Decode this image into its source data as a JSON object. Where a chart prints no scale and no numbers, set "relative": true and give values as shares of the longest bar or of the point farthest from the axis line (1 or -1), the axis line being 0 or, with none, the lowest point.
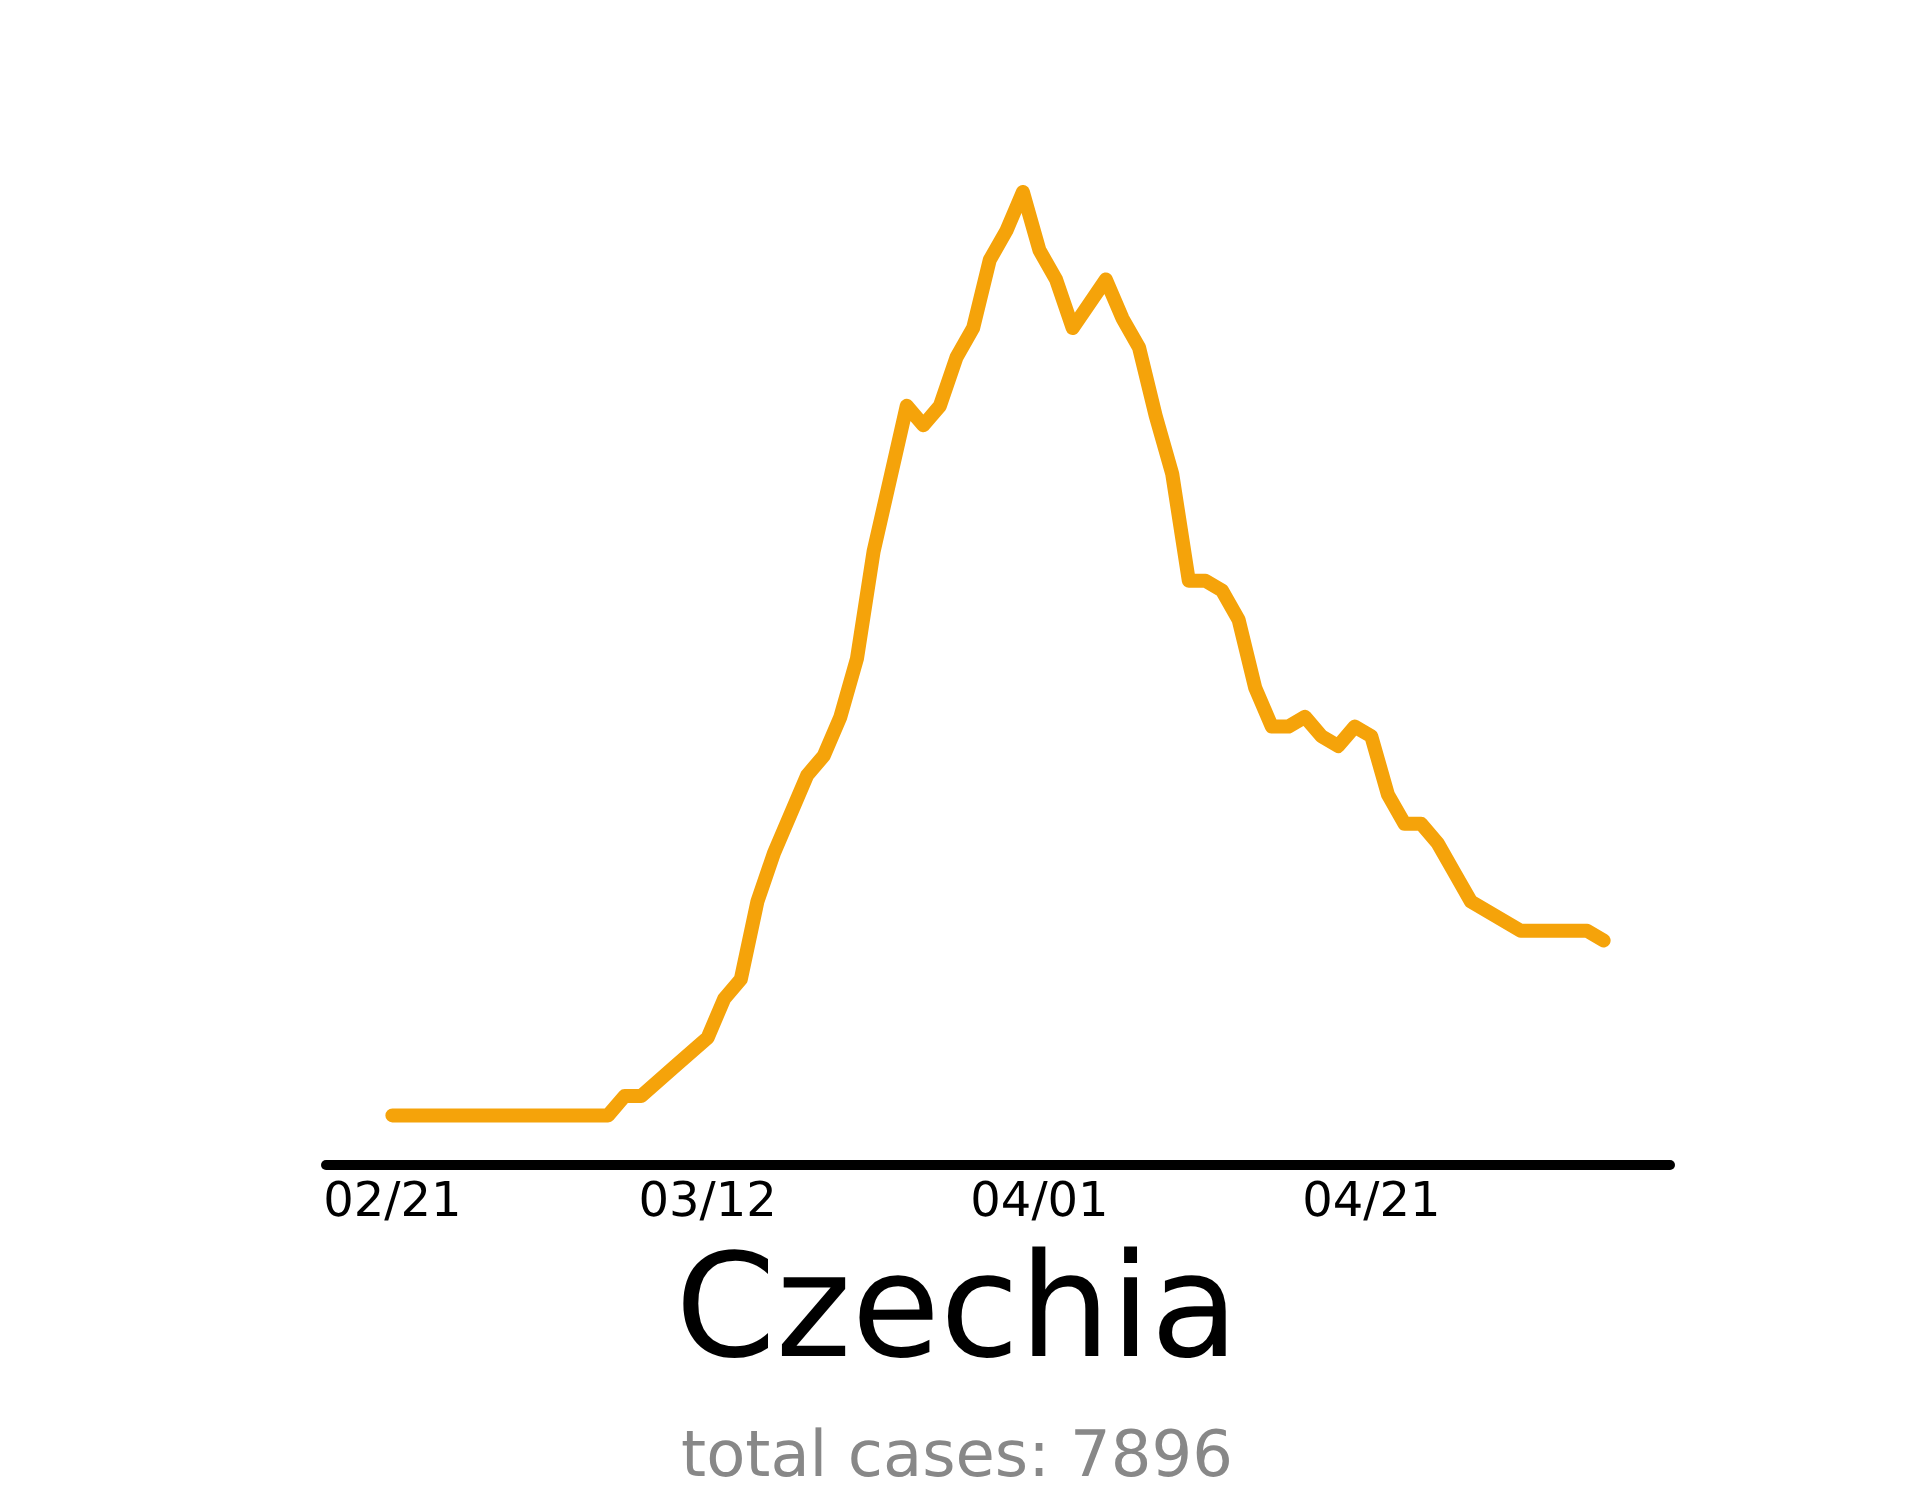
{
  "chart_data": {
    "type": "line",
    "title": "Czechia",
    "annotations": [
      "total cases: 7896"
    ],
    "relative": true,
    "tick_labels": "x",
    "grid": false,
    "marker": "none",
    "line_style": "solid",
    "xlim": [
      "--02-17",
      "--05-09"
    ],
    "xticks": [
      {
        "value": "--02-21",
        "label": "02/21"
      },
      {
        "value": "--03-12",
        "label": "03/12"
      },
      {
        "value": "--04-01",
        "label": "04/01"
      },
      {
        "value": "--04-21",
        "label": "04/21"
      }
    ],
    "x": [
      "--02-21",
      "--02-28",
      "--03-03",
      "--03-06",
      "--03-07",
      "--03-08",
      "--03-10",
      "--03-12",
      "--03-13",
      "--03-14",
      "--03-15",
      "--03-16",
      "--03-18",
      "--03-19",
      "--03-20",
      "--03-21",
      "--03-22",
      "--03-24",
      "--03-25",
      "--03-26",
      "--03-27",
      "--03-28",
      "--03-29",
      "--03-30",
      "--03-31",
      "--04-01",
      "--04-02",
      "--04-03",
      "--04-05",
      "--04-06",
      "--04-07",
      "--04-08",
      "--04-09",
      "--04-10",
      "--04-11",
      "--04-12",
      "--04-13",
      "--04-14",
      "--04-15",
      "--04-16",
      "--04-17",
      "--04-18",
      "--04-19",
      "--04-20",
      "--04-21",
      "--04-22",
      "--04-23",
      "--04-24",
      "--04-25",
      "--04-26",
      "--04-27",
      "--04-28",
      "--04-29",
      "--04-30",
      "--05-02",
      "--05-03",
      "--05-04",
      "--05-05"
    ],
    "series": [
      {
        "color": "#f5a30a",
        "values": [
          0.05,
          0.05,
          0.05,
          0.05,
          0.07,
          0.07,
          0.1,
          0.13,
          0.17,
          0.19,
          0.27,
          0.32,
          0.4,
          0.42,
          0.46,
          0.52,
          0.63,
          0.78,
          0.76,
          0.78,
          0.83,
          0.86,
          0.93,
          0.96,
          1.0,
          0.94,
          0.91,
          0.86,
          0.91,
          0.87,
          0.84,
          0.77,
          0.71,
          0.6,
          0.6,
          0.59,
          0.56,
          0.49,
          0.45,
          0.45,
          0.46,
          0.44,
          0.43,
          0.45,
          0.44,
          0.38,
          0.35,
          0.35,
          0.33,
          0.3,
          0.27,
          0.26,
          0.25,
          0.24,
          0.24,
          0.24,
          0.24,
          0.23
        ]
      }
    ]
  }
}
